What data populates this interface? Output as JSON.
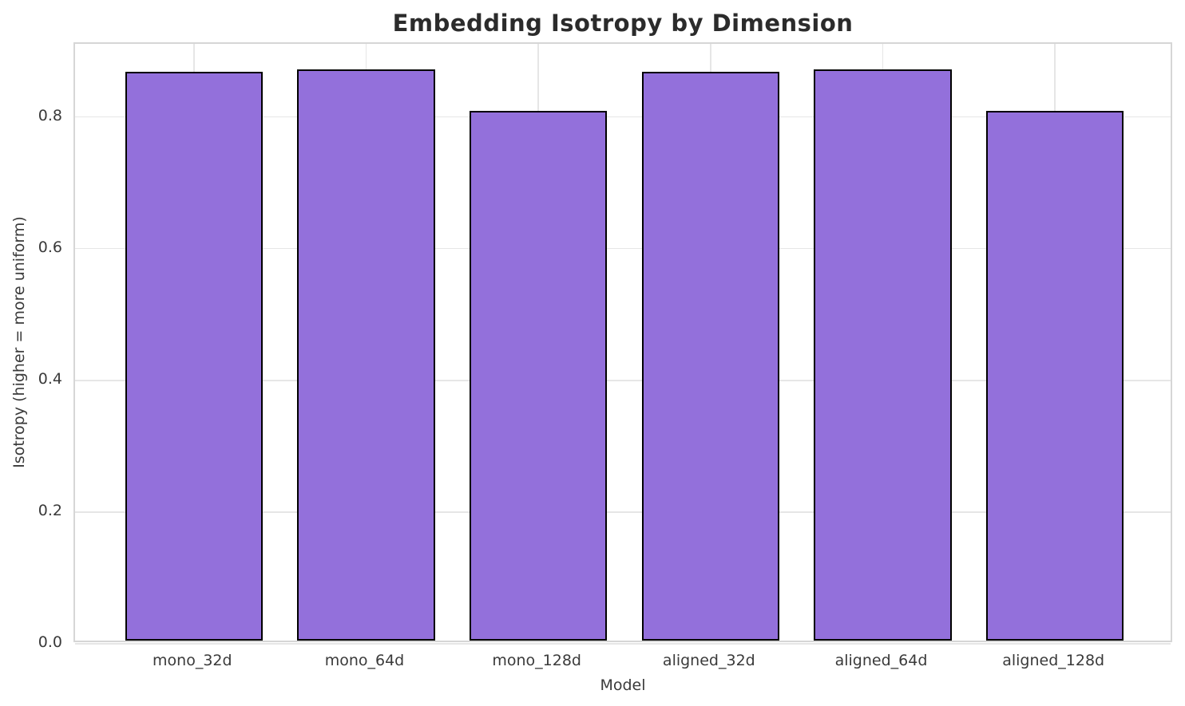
{
  "chart_data": {
    "type": "bar",
    "title": "Embedding Isotropy by Dimension",
    "xlabel": "Model",
    "ylabel": "Isotropy (higher = more uniform)",
    "categories": [
      "mono_32d",
      "mono_64d",
      "mono_128d",
      "aligned_32d",
      "aligned_64d",
      "aligned_128d"
    ],
    "values": [
      0.864,
      0.868,
      0.805,
      0.864,
      0.868,
      0.805
    ],
    "yticks": [
      0.0,
      0.2,
      0.4,
      0.6,
      0.8
    ],
    "ytick_labels": [
      "0.0",
      "0.2",
      "0.4",
      "0.6",
      "0.8"
    ],
    "ylim": [
      0,
      0.911
    ],
    "grid": true,
    "legend": null,
    "bar_color": "#9370db",
    "bar_edge_color": "#000000",
    "grid_color": "#e6e6e6",
    "spine_color": "#d6d6d6",
    "background_color": "#ffffff",
    "title_color": "#2b2b2b",
    "tick_color": "#3a3a3a"
  }
}
